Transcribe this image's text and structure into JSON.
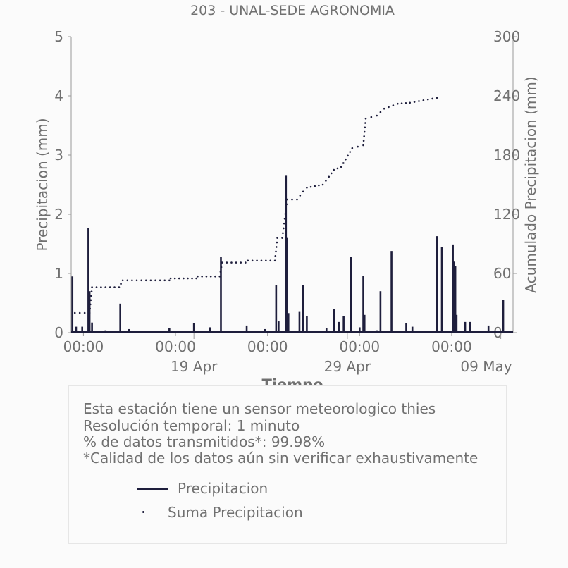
{
  "chart_data": {
    "type": "bar",
    "title": "203 - UNAL-SEDE AGRONOMIA",
    "xlabel": "Tiempo",
    "ylabel": "Precipitacion (mm)",
    "y2label": "Acumulado Precipitacion (mm)",
    "ylim": [
      0,
      5
    ],
    "y2lim": [
      0,
      300
    ],
    "yticks": [
      "0",
      "1",
      "2",
      "3",
      "4",
      "5"
    ],
    "y2ticks": [
      "0",
      "60",
      "120",
      "180",
      "240",
      "300"
    ],
    "xlim_days": [
      0,
      30
    ],
    "xticks_minor": [
      {
        "day": 1,
        "label": "00:00"
      },
      {
        "day": 8.5,
        "label": "00:00"
      },
      {
        "day": 16,
        "label": "00:00"
      },
      {
        "day": 23.5,
        "label": "00:00"
      },
      {
        "day": 31,
        "label": "00:00"
      }
    ],
    "xticks_major": [
      {
        "day": 10,
        "label": "19 Apr"
      },
      {
        "day": 22.5,
        "label": "29 Apr"
      },
      {
        "day": 35,
        "label": "09 May"
      }
    ],
    "series": [
      {
        "name": "Precipitacion",
        "type": "line",
        "color": "#1e1e3c",
        "points": [
          [
            0.1,
            0.95
          ],
          [
            0.4,
            0.1
          ],
          [
            0.9,
            0.1
          ],
          [
            1.4,
            1.77
          ],
          [
            1.5,
            0.7
          ],
          [
            1.7,
            0.17
          ],
          [
            2.8,
            0.04
          ],
          [
            4.0,
            0.49
          ],
          [
            4.7,
            0.06
          ],
          [
            8.0,
            0.08
          ],
          [
            10.0,
            0.16
          ],
          [
            11.3,
            0.09
          ],
          [
            12.2,
            1.28
          ],
          [
            14.3,
            0.12
          ],
          [
            15.8,
            0.06
          ],
          [
            16.7,
            0.8
          ],
          [
            16.9,
            0.19
          ],
          [
            17.5,
            2.65
          ],
          [
            17.6,
            1.6
          ],
          [
            17.7,
            0.33
          ],
          [
            18.6,
            0.35
          ],
          [
            18.9,
            0.8
          ],
          [
            19.2,
            0.28
          ],
          [
            20.8,
            0.08
          ],
          [
            21.4,
            0.4
          ],
          [
            21.8,
            0.18
          ],
          [
            22.2,
            0.28
          ],
          [
            22.8,
            1.28
          ],
          [
            23.5,
            0.09
          ],
          [
            23.8,
            0.96
          ],
          [
            23.9,
            0.3
          ],
          [
            24.9,
            0.04
          ],
          [
            25.2,
            0.7
          ],
          [
            26.1,
            1.38
          ],
          [
            27.3,
            0.16
          ],
          [
            27.8,
            0.1
          ],
          [
            29.8,
            1.63
          ],
          [
            30.2,
            1.45
          ],
          [
            31.1,
            1.49
          ],
          [
            31.2,
            1.2
          ],
          [
            31.3,
            1.13
          ],
          [
            31.4,
            0.3
          ],
          [
            32.1,
            0.18
          ],
          [
            32.5,
            0.18
          ],
          [
            34.0,
            0.12
          ],
          [
            35.2,
            0.55
          ]
        ]
      },
      {
        "name": "Suma Precipitacion",
        "type": "dots",
        "color": "#1e1e3c",
        "axis": "y2",
        "points": [
          [
            0.3,
            20
          ],
          [
            1.5,
            20
          ],
          [
            1.7,
            46
          ],
          [
            3.9,
            46
          ],
          [
            4.2,
            53
          ],
          [
            8.0,
            53
          ],
          [
            8.1,
            55
          ],
          [
            10.2,
            55
          ],
          [
            10.3,
            57
          ],
          [
            12.1,
            57
          ],
          [
            12.3,
            71
          ],
          [
            14.2,
            71
          ],
          [
            14.4,
            73
          ],
          [
            16.6,
            73
          ],
          [
            16.8,
            96
          ],
          [
            17.2,
            96
          ],
          [
            17.6,
            135
          ],
          [
            18.4,
            135
          ],
          [
            18.9,
            143
          ],
          [
            19.2,
            147
          ],
          [
            20.5,
            150
          ],
          [
            21.0,
            158
          ],
          [
            21.4,
            165
          ],
          [
            22.0,
            168
          ],
          [
            22.9,
            187
          ],
          [
            23.8,
            190
          ],
          [
            24.0,
            217
          ],
          [
            24.9,
            220
          ],
          [
            25.5,
            227
          ],
          [
            26.6,
            232
          ],
          [
            27.6,
            233
          ],
          [
            29.8,
            238
          ]
        ]
      }
    ],
    "grid": false,
    "legend_position": "below"
  },
  "info": {
    "line1": "Esta estación tiene un sensor meteorologico thies",
    "line2": "Resolución temporal: 1 minuto",
    "line3": "% de datos transmitidos*: 99.98%",
    "line4": "*Calidad de los datos aún sin verificar exhaustivamente"
  },
  "legend": {
    "item1": "Precipitacion",
    "item2": "Suma Precipitacion"
  }
}
